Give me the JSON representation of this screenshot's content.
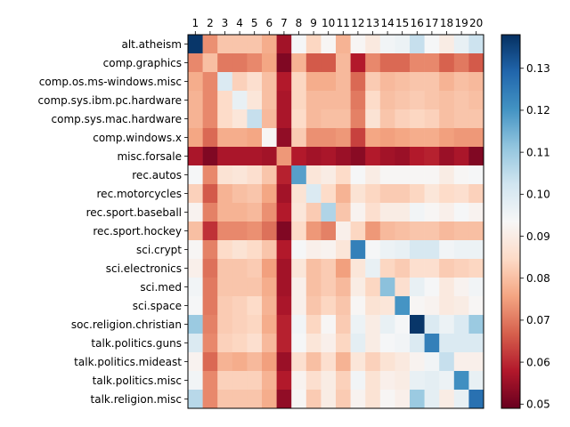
{
  "chart_data": {
    "type": "heatmap",
    "x_ticks": [
      "1",
      "2",
      "3",
      "4",
      "5",
      "6",
      "7",
      "8",
      "9",
      "10",
      "11",
      "12",
      "13",
      "14",
      "15",
      "16",
      "17",
      "18",
      "19",
      "20"
    ],
    "y_ticks": [
      "alt.atheism",
      "comp.graphics",
      "comp.os.ms-windows.misc",
      "comp.sys.ibm.pc.hardware",
      "comp.sys.mac.hardware",
      "comp.windows.x",
      "misc.forsale",
      "rec.autos",
      "rec.motorcycles",
      "rec.sport.baseball",
      "rec.sport.hockey",
      "sci.crypt",
      "sci.electronics",
      "sci.med",
      "sci.space",
      "soc.religion.christian",
      "talk.politics.guns",
      "talk.politics.mideast",
      "talk.politics.misc",
      "talk.religion.misc"
    ],
    "values": [
      [
        0.137,
        0.073,
        0.081,
        0.081,
        0.081,
        0.077,
        0.056,
        0.094,
        0.084,
        0.093,
        0.078,
        0.093,
        0.089,
        0.095,
        0.096,
        0.104,
        0.094,
        0.09,
        0.097,
        0.103
      ],
      [
        0.072,
        0.08,
        0.07,
        0.07,
        0.072,
        0.076,
        0.052,
        0.078,
        0.066,
        0.066,
        0.079,
        0.058,
        0.072,
        0.068,
        0.068,
        0.072,
        0.072,
        0.067,
        0.07,
        0.066
      ],
      [
        0.077,
        0.072,
        0.1,
        0.083,
        0.086,
        0.08,
        0.058,
        0.084,
        0.077,
        0.077,
        0.079,
        0.068,
        0.082,
        0.079,
        0.08,
        0.081,
        0.081,
        0.078,
        0.08,
        0.079
      ],
      [
        0.078,
        0.072,
        0.085,
        0.097,
        0.088,
        0.08,
        0.057,
        0.084,
        0.079,
        0.079,
        0.079,
        0.07,
        0.085,
        0.08,
        0.081,
        0.082,
        0.081,
        0.08,
        0.081,
        0.08
      ],
      [
        0.078,
        0.072,
        0.085,
        0.088,
        0.104,
        0.079,
        0.057,
        0.085,
        0.079,
        0.08,
        0.08,
        0.071,
        0.087,
        0.081,
        0.083,
        0.084,
        0.083,
        0.08,
        0.081,
        0.081
      ],
      [
        0.076,
        0.068,
        0.077,
        0.077,
        0.076,
        0.093,
        0.054,
        0.082,
        0.073,
        0.073,
        0.074,
        0.063,
        0.076,
        0.075,
        0.076,
        0.077,
        0.077,
        0.075,
        0.074,
        0.074
      ],
      [
        0.057,
        0.052,
        0.057,
        0.057,
        0.057,
        0.056,
        0.074,
        0.058,
        0.056,
        0.057,
        0.055,
        0.053,
        0.058,
        0.056,
        0.055,
        0.058,
        0.059,
        0.055,
        0.057,
        0.052
      ],
      [
        0.094,
        0.072,
        0.087,
        0.088,
        0.086,
        0.081,
        0.059,
        0.118,
        0.088,
        0.09,
        0.085,
        0.094,
        0.09,
        0.093,
        0.093,
        0.093,
        0.093,
        0.09,
        0.093,
        0.094
      ],
      [
        0.083,
        0.066,
        0.078,
        0.08,
        0.081,
        0.076,
        0.056,
        0.087,
        0.1,
        0.085,
        0.078,
        0.087,
        0.084,
        0.082,
        0.082,
        0.084,
        0.088,
        0.085,
        0.086,
        0.083
      ],
      [
        0.092,
        0.071,
        0.078,
        0.078,
        0.079,
        0.073,
        0.058,
        0.088,
        0.082,
        0.107,
        0.081,
        0.092,
        0.086,
        0.09,
        0.09,
        0.095,
        0.093,
        0.091,
        0.094,
        0.092
      ],
      [
        0.08,
        0.061,
        0.072,
        0.072,
        0.073,
        0.069,
        0.052,
        0.085,
        0.074,
        0.071,
        0.091,
        0.084,
        0.074,
        0.079,
        0.08,
        0.081,
        0.081,
        0.079,
        0.08,
        0.08
      ],
      [
        0.093,
        0.071,
        0.085,
        0.087,
        0.085,
        0.081,
        0.058,
        0.094,
        0.091,
        0.092,
        0.088,
        0.124,
        0.094,
        0.096,
        0.097,
        0.101,
        0.101,
        0.095,
        0.096,
        0.096
      ],
      [
        0.091,
        0.069,
        0.081,
        0.081,
        0.082,
        0.075,
        0.056,
        0.088,
        0.08,
        0.082,
        0.075,
        0.088,
        0.097,
        0.084,
        0.082,
        0.086,
        0.086,
        0.082,
        0.083,
        0.084
      ],
      [
        0.095,
        0.07,
        0.081,
        0.081,
        0.081,
        0.077,
        0.056,
        0.091,
        0.08,
        0.082,
        0.079,
        0.09,
        0.084,
        0.112,
        0.086,
        0.097,
        0.094,
        0.089,
        0.092,
        0.095
      ],
      [
        0.094,
        0.07,
        0.082,
        0.083,
        0.085,
        0.078,
        0.057,
        0.091,
        0.081,
        0.084,
        0.081,
        0.093,
        0.087,
        0.088,
        0.12,
        0.093,
        0.092,
        0.089,
        0.09,
        0.093
      ],
      [
        0.11,
        0.071,
        0.082,
        0.083,
        0.084,
        0.077,
        0.059,
        0.095,
        0.084,
        0.093,
        0.082,
        0.096,
        0.09,
        0.097,
        0.094,
        0.137,
        0.1,
        0.096,
        0.1,
        0.11
      ],
      [
        0.1,
        0.072,
        0.083,
        0.084,
        0.086,
        0.079,
        0.059,
        0.094,
        0.088,
        0.091,
        0.084,
        0.098,
        0.09,
        0.094,
        0.095,
        0.1,
        0.124,
        0.1,
        0.1,
        0.1
      ],
      [
        0.092,
        0.068,
        0.078,
        0.077,
        0.079,
        0.075,
        0.055,
        0.086,
        0.08,
        0.086,
        0.078,
        0.088,
        0.083,
        0.087,
        0.089,
        0.092,
        0.095,
        0.104,
        0.091,
        0.091
      ],
      [
        0.095,
        0.072,
        0.083,
        0.083,
        0.083,
        0.078,
        0.058,
        0.092,
        0.086,
        0.09,
        0.083,
        0.095,
        0.087,
        0.091,
        0.09,
        0.097,
        0.098,
        0.096,
        0.121,
        0.097
      ],
      [
        0.106,
        0.072,
        0.081,
        0.081,
        0.081,
        0.077,
        0.054,
        0.093,
        0.082,
        0.09,
        0.082,
        0.092,
        0.087,
        0.093,
        0.091,
        0.11,
        0.098,
        0.09,
        0.097,
        0.127
      ]
    ],
    "colorbar": {
      "colormap": "RdBu",
      "range": [
        0.049,
        0.138
      ],
      "ticks": [
        "0.05",
        "0.06",
        "0.07",
        "0.08",
        "0.09",
        "0.10",
        "0.11",
        "0.12",
        "0.13"
      ]
    },
    "title": "",
    "xlabel": "",
    "ylabel": "",
    "grid": false,
    "x_axis_position": "top"
  }
}
